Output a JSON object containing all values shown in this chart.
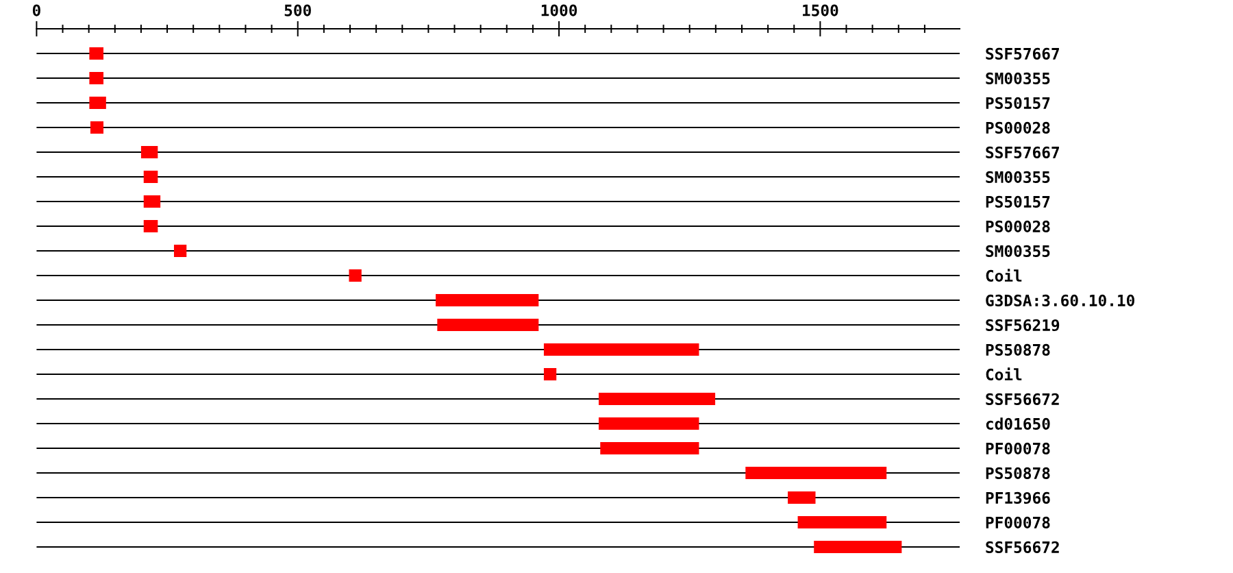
{
  "chart_data": {
    "type": "bar",
    "orientation": "horizontal",
    "color": "#ff0000",
    "grid": "y",
    "categories": [
      "SSF57667",
      "SM00355",
      "PS50157",
      "PS00028",
      "SSF57667",
      "SM00355",
      "PS50157",
      "PS00028",
      "SM00355",
      "Coil",
      "G3DSA:3.60.10.10",
      "SSF56219",
      "PS50878",
      "Coil",
      "SSF56672",
      "cd01650",
      "PF00078",
      "PS50878",
      "PF13966",
      "PF00078",
      "SSF56672"
    ],
    "base": [
      101,
      101,
      101,
      103,
      200,
      205,
      205,
      205,
      263,
      598,
      764,
      767,
      971,
      971,
      1076,
      1076,
      1079,
      1357,
      1438,
      1457,
      1488
    ],
    "values": [
      27,
      27,
      32,
      25,
      32,
      27,
      32,
      27,
      24,
      24,
      197,
      194,
      297,
      24,
      223,
      192,
      189,
      270,
      53,
      170,
      168
    ],
    "xlim": [
      0,
      1767
    ],
    "xticks": [
      0,
      {
        "value": 50,
        "label": null
      },
      {
        "value": 100,
        "label": null
      },
      {
        "value": 150,
        "label": null
      },
      {
        "value": 200,
        "label": null
      },
      {
        "value": 250,
        "label": null
      },
      {
        "value": 300,
        "label": null
      },
      {
        "value": 350,
        "label": null
      },
      {
        "value": 400,
        "label": null
      },
      {
        "value": 450,
        "label": null
      },
      500,
      {
        "value": 550,
        "label": null
      },
      {
        "value": 600,
        "label": null
      },
      {
        "value": 650,
        "label": null
      },
      {
        "value": 700,
        "label": null
      },
      {
        "value": 750,
        "label": null
      },
      {
        "value": 800,
        "label": null
      },
      {
        "value": 850,
        "label": null
      },
      {
        "value": 900,
        "label": null
      },
      {
        "value": 950,
        "label": null
      },
      1000,
      {
        "value": 1050,
        "label": null
      },
      {
        "value": 1100,
        "label": null
      },
      {
        "value": 1150,
        "label": null
      },
      {
        "value": 1200,
        "label": null
      },
      {
        "value": 1250,
        "label": null
      },
      {
        "value": 1300,
        "label": null
      },
      {
        "value": 1350,
        "label": null
      },
      {
        "value": 1400,
        "label": null
      },
      {
        "value": 1450,
        "label": null
      },
      1500,
      {
        "value": 1550,
        "label": null
      },
      {
        "value": 1600,
        "label": null
      },
      {
        "value": 1650,
        "label": null
      },
      {
        "value": 1700,
        "label": null
      }
    ]
  }
}
